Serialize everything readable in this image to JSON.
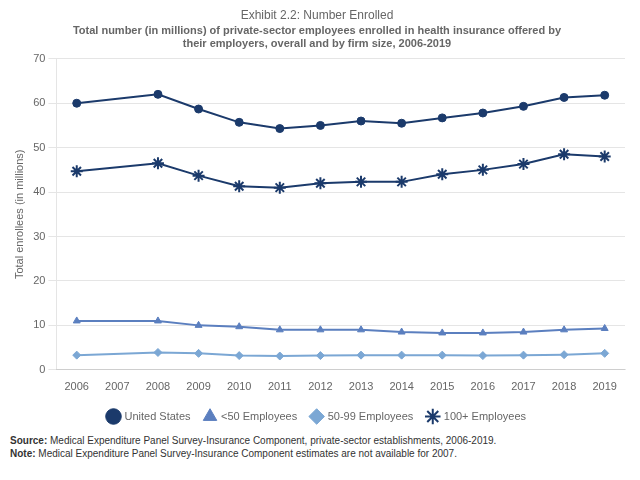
{
  "chart_data": {
    "type": "line",
    "title": "Exhibit 2.2: Number Enrolled",
    "subtitle": [
      "Total number (in millions) of private-sector employees enrolled in health insurance offered by",
      "their employers, overall and by firm size, 2006-2019"
    ],
    "y_label": "Total enrollees (in millions)",
    "x": [
      2006,
      2008,
      2009,
      2010,
      2011,
      2012,
      2013,
      2014,
      2015,
      2016,
      2017,
      2018,
      2019
    ],
    "series": [
      {
        "name": "United States",
        "color": "#1B3A6B",
        "marker": "circle",
        "values": [
          60.0,
          62.0,
          58.7,
          55.7,
          54.3,
          55.0,
          56.0,
          55.5,
          56.7,
          57.8,
          59.3,
          61.3,
          61.8
        ]
      },
      {
        "name": "<50 Employees",
        "color": "#5B7FBF",
        "marker": "triangle",
        "values": [
          11.0,
          11.0,
          10.0,
          9.7,
          9.0,
          9.0,
          9.0,
          8.5,
          8.3,
          8.3,
          8.5,
          9.0,
          9.3
        ]
      },
      {
        "name": "50-99 Employees",
        "color": "#7BA7D4",
        "marker": "diamond",
        "values": [
          3.3,
          3.9,
          3.7,
          3.2,
          3.1,
          3.2,
          3.3,
          3.3,
          3.3,
          3.2,
          3.3,
          3.4,
          3.7
        ]
      },
      {
        "name": "100+ Employees",
        "color": "#1B3A6B",
        "marker": "star",
        "values": [
          44.7,
          46.5,
          43.7,
          41.3,
          41.0,
          42.0,
          42.3,
          42.3,
          44.0,
          45.0,
          46.3,
          48.5,
          48.0
        ]
      }
    ],
    "xlim": [
      2005.5,
      2019.5
    ],
    "xticks": [
      2006,
      2007,
      2008,
      2009,
      2010,
      2011,
      2012,
      2013,
      2014,
      2015,
      2016,
      2017,
      2018,
      2019
    ],
    "ylim": [
      0,
      70
    ],
    "yticks": [
      0,
      10,
      20,
      30,
      40,
      50,
      60,
      70
    ],
    "grid": "y",
    "legend": "bottom",
    "annotations": [
      "Source: Medical Expenditure Panel Survey-Insurance Component, private-sector establishments, 2006-2019.",
      "Note: Medical Expenditure Panel Survey-Insurance Component estimates are not available for 2007."
    ]
  }
}
